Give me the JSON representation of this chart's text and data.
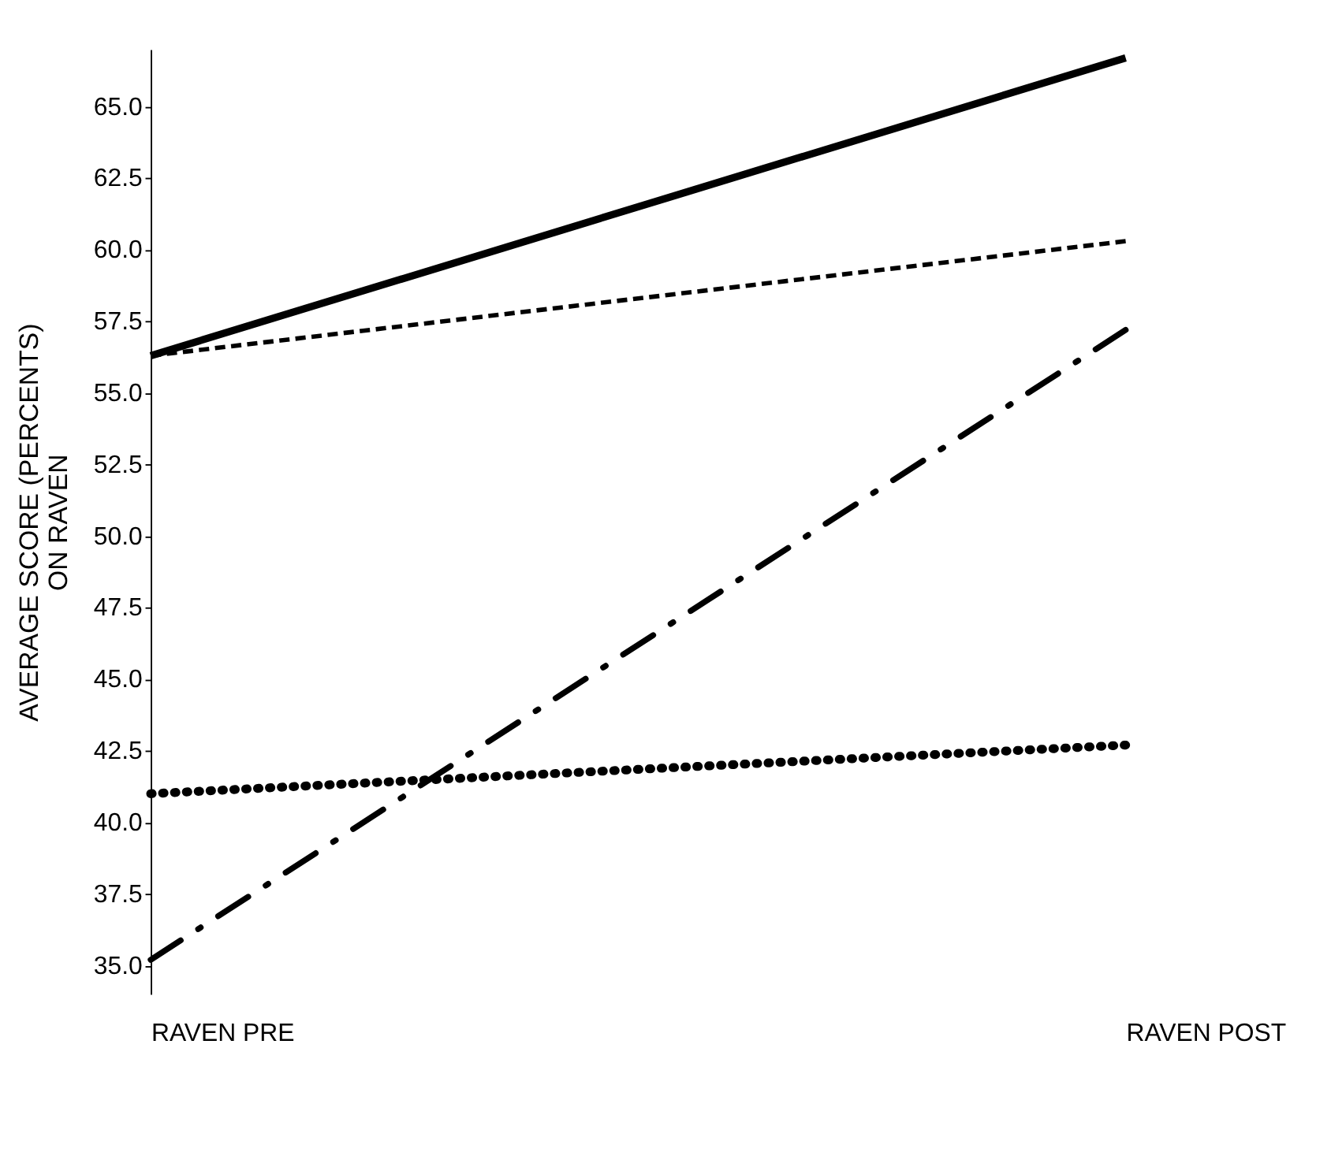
{
  "chart_data": {
    "type": "line",
    "ylabel": "AVERAGE SCORE (PERCENTS)\nON RAVEN",
    "categories": [
      "RAVEN PRE",
      "RAVEN POST"
    ],
    "series": [
      {
        "color": "#000000",
        "values": [
          56.3,
          66.7
        ],
        "line_style": "solid"
      },
      {
        "color": "#000000",
        "values": [
          56.3,
          60.3
        ],
        "line_style": "dashed"
      },
      {
        "color": "#000000",
        "values": [
          35.2,
          57.2
        ],
        "line_style": "dashdot"
      },
      {
        "color": "#000000",
        "values": [
          41.0,
          42.7
        ],
        "line_style": "dotted"
      }
    ],
    "ylim": [
      34,
      67
    ],
    "yticks": [
      {
        "value": 35,
        "label": "35.0"
      },
      37.5,
      {
        "value": 40,
        "label": "40.0"
      },
      42.5,
      {
        "value": 45,
        "label": "45.0"
      },
      47.5,
      {
        "value": 50,
        "label": "50.0"
      },
      52.5,
      {
        "value": 55,
        "label": "55.0"
      },
      57.5,
      {
        "value": 60,
        "label": "60.0"
      },
      62.5,
      {
        "value": 65,
        "label": "65.0"
      }
    ],
    "grid": false,
    "legend": false,
    "marker": "none"
  }
}
